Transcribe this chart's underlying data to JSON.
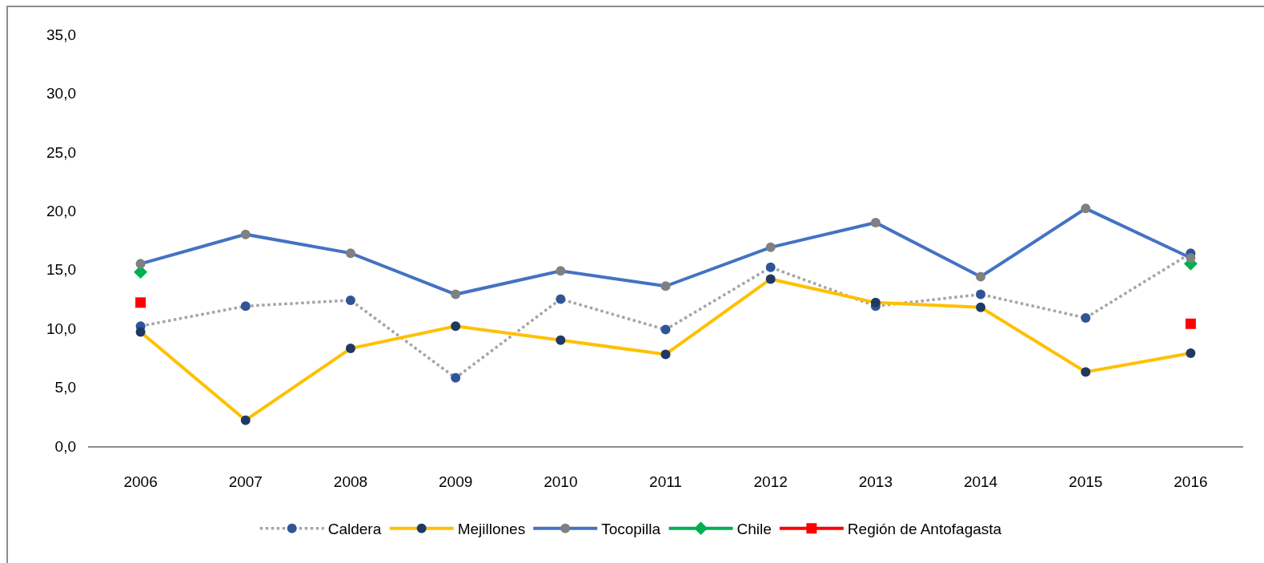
{
  "chart_data": {
    "type": "line",
    "categories": [
      "2006",
      "2007",
      "2008",
      "2009",
      "2010",
      "2011",
      "2012",
      "2013",
      "2014",
      "2015",
      "2016"
    ],
    "series": [
      {
        "name": "Caldera",
        "color": "#a5a5a5",
        "line_style": "dotted",
        "marker": "circle",
        "colors": [
          "#2f5597",
          "#2f5597",
          "#2f5597",
          "#2f5597",
          "#2f5597",
          "#2f5597",
          "#2f5597",
          "#2f5597",
          "#2f5597",
          "#2f5597",
          "#2f5597"
        ],
        "values": [
          10.2,
          11.9,
          12.4,
          5.8,
          12.5,
          9.9,
          15.2,
          11.9,
          12.9,
          10.9,
          16.4
        ]
      },
      {
        "name": "Mejillones",
        "color": "#ffc000",
        "line_style": "solid",
        "marker": "circle",
        "colors": [
          "#203864",
          "#203864",
          "#203864",
          "#203864",
          "#203864",
          "#203864",
          "#203864",
          "#203864",
          "#203864",
          "#203864",
          "#203864"
        ],
        "values": [
          9.7,
          2.2,
          8.3,
          10.2,
          9.0,
          7.8,
          14.2,
          12.2,
          11.8,
          6.3,
          7.9
        ]
      },
      {
        "name": "Tocopilla",
        "color": "#4472c4",
        "line_style": "solid",
        "marker": "circle",
        "colors": [
          "#808080",
          "#808080",
          "#808080",
          "#808080",
          "#808080",
          "#808080",
          "#808080",
          "#808080",
          "#808080",
          "#808080",
          "#808080"
        ],
        "values": [
          15.5,
          18.0,
          16.4,
          12.9,
          14.9,
          13.6,
          16.9,
          19.0,
          14.4,
          20.2,
          16.0
        ]
      },
      {
        "name": "Chile",
        "type": "scatter",
        "color": "#00b050",
        "line_style": "solid",
        "marker": "diamond",
        "values": [
          14.8,
          null,
          null,
          null,
          null,
          null,
          null,
          null,
          null,
          null,
          15.5
        ]
      },
      {
        "name": "Región de Antofagasta",
        "type": "scatter",
        "color": "#ff0000",
        "line_style": "solid",
        "marker": "square",
        "values": [
          12.2,
          null,
          null,
          null,
          null,
          null,
          null,
          null,
          null,
          null,
          10.4
        ]
      }
    ],
    "ylim": [
      0,
      35
    ],
    "yticks": [
      {
        "value": 0,
        "label": "0,0"
      },
      {
        "value": 5,
        "label": "5,0"
      },
      {
        "value": 10,
        "label": "10,0"
      },
      {
        "value": 15,
        "label": "15,0"
      },
      {
        "value": 20,
        "label": "20,0"
      },
      {
        "value": 25,
        "label": "25,0"
      },
      {
        "value": 30,
        "label": "30,0"
      },
      {
        "value": 35,
        "label": "35,0"
      }
    ],
    "grid": false,
    "legend": "bottom"
  }
}
